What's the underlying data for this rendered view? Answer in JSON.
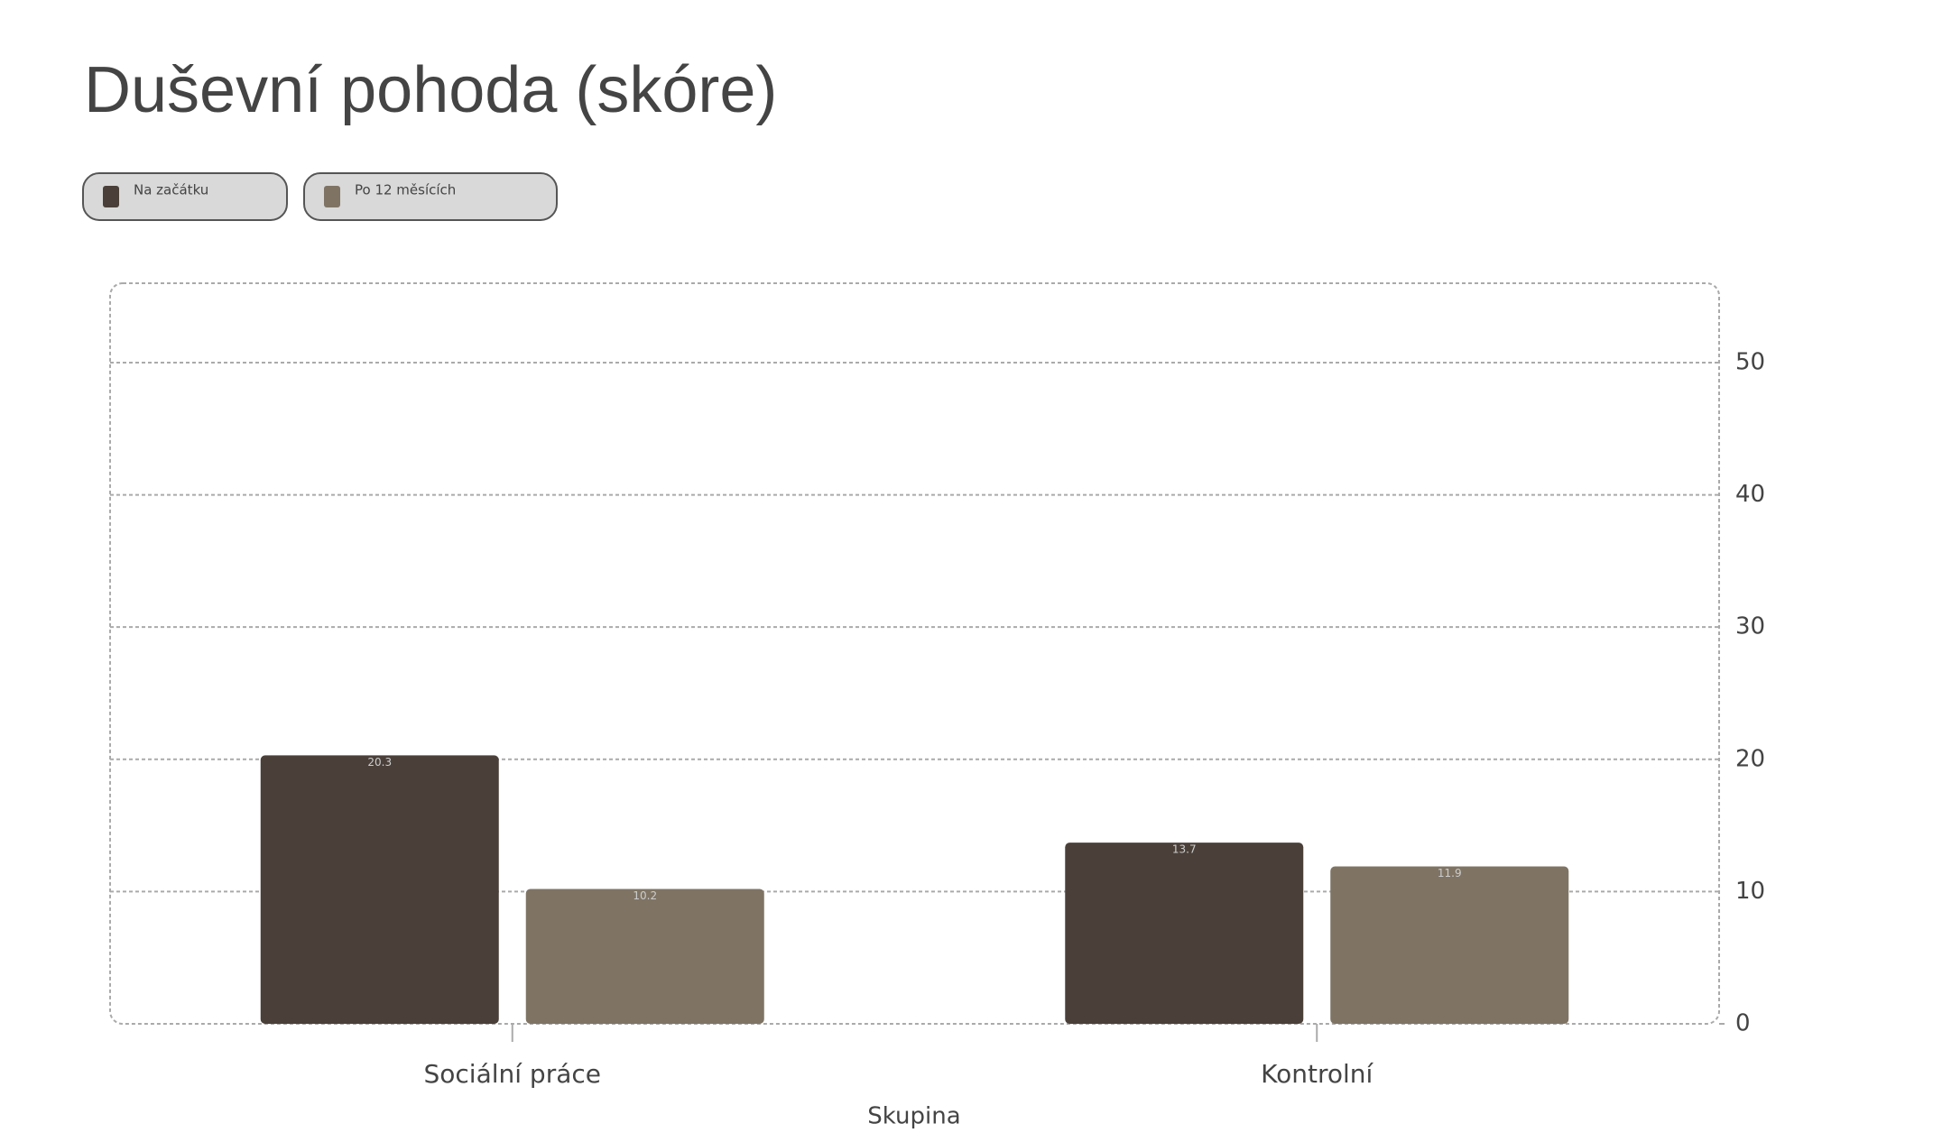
{
  "chart_data": {
    "type": "bar",
    "title": "Duševní pohoda (skóre)",
    "x_label": "Skupina",
    "categories": [
      "Sociální práce",
      "Kontrolní"
    ],
    "series": [
      {
        "name": "Na začátku",
        "color": "#4a4039",
        "values": [
          20.3,
          13.7
        ]
      },
      {
        "name": "Po 12 měsících",
        "color": "#7f7464",
        "values": [
          10.2,
          11.9
        ]
      }
    ],
    "ylim": [
      0,
      56
    ],
    "yticks": [
      0,
      10,
      20,
      30,
      40,
      50
    ],
    "grid": true,
    "y_axis_side": "right"
  }
}
